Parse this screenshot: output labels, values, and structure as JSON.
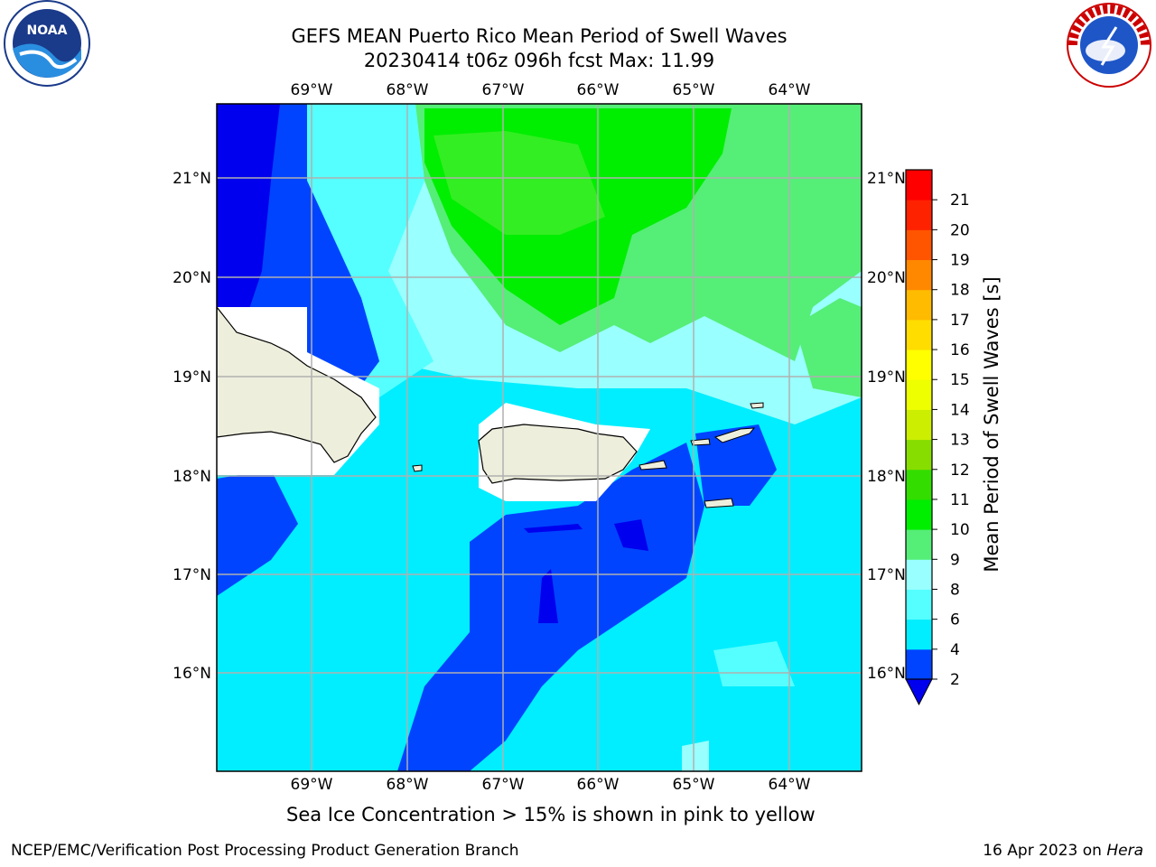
{
  "header": {
    "title_line1": "GEFS MEAN Puerto Rico Mean Period of Swell Waves",
    "title_line2": "20230414 t06z 096h fcst   Max: 11.99"
  },
  "logos": {
    "left_icon": "noaa-logo",
    "left_text": "NOAA",
    "right_icon": "nws-logo",
    "right_text": "NATIONAL WEATHER SERVICE"
  },
  "map": {
    "lon_labels": [
      "69°W",
      "68°W",
      "67°W",
      "66°W",
      "65°W",
      "64°W"
    ],
    "lat_labels": [
      "21°N",
      "20°N",
      "19°N",
      "18°N",
      "17°N",
      "16°N"
    ],
    "land_color": "#eeeedd",
    "coast_color": "#000000",
    "grid_color": "#b0b0b0"
  },
  "colorbar": {
    "label": "Mean Period of Swell Waves [s]",
    "ticks": [
      "2",
      "4",
      "6",
      "8",
      "9",
      "10",
      "11",
      "12",
      "13",
      "14",
      "15",
      "16",
      "17",
      "18",
      "19",
      "20",
      "21"
    ],
    "colors": [
      "#0044ff",
      "#00eeff",
      "#55ffff",
      "#99ffff",
      "#55ee77",
      "#00ee00",
      "#33dd00",
      "#88dd00",
      "#ccee00",
      "#eeff00",
      "#ffff00",
      "#ffdd00",
      "#ffbb00",
      "#ff8800",
      "#ff5500",
      "#ff2200",
      "#ff0000"
    ],
    "under_color": "#0000ee"
  },
  "notes": {
    "ice": "Sea Ice Concentration > 15% is shown in pink to yellow",
    "footer_left": "NCEP/EMC/Verification Post Processing Product Generation Branch",
    "footer_date": "16 Apr 2023 on ",
    "footer_machine": "Hera"
  }
}
